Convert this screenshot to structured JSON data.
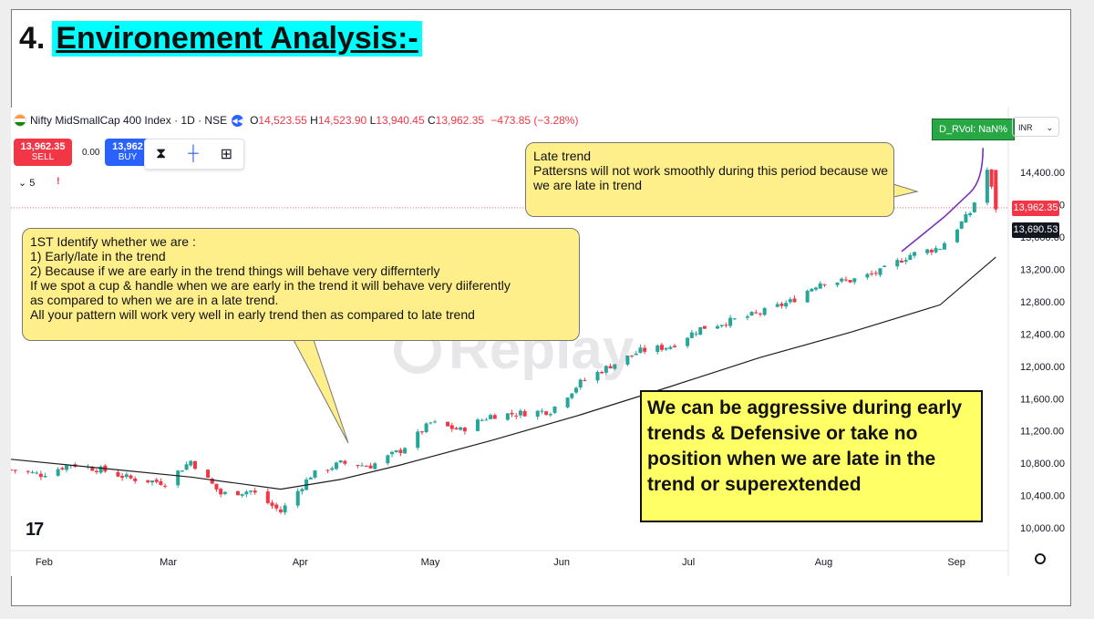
{
  "slide": {
    "heading_number": "4.",
    "heading_text": "Environement Analysis:-"
  },
  "toolbar": {
    "symbol": "Nifty MidSmallCap 400 Index · 1D · NSE",
    "ohlc": {
      "o_label": "O",
      "o": "14,523.55",
      "h_label": "H",
      "h": "14,523.90",
      "l_label": "L",
      "l": "13,940.45",
      "c_label": "C",
      "c": "13,962.35",
      "change": "−473.85 (−3.28%)"
    },
    "sell_price": "13,962.35",
    "sell_label": "SELL",
    "spread": "0.00",
    "buy_price": "13,962",
    "buy_label": "BUY",
    "lines_select": "⌄ 5",
    "warning": "!",
    "indicator": "D_RVol: NaN%",
    "currency": "INR",
    "tv_logo": "17",
    "watermark": "Replay"
  },
  "callouts": {
    "late_trend": [
      "Late trend",
      "Pattersns will not work smoothly during this period because we",
      "we are late in trend"
    ],
    "early": [
      "1ST Identify whether we are :",
      "1) Early/late in the trend",
      "2) Because if we are early in the trend things will behave very differnterly",
      "If we spot a cup & handle when we are early in the trend it will behave very diiferently",
      "as compared to when we are in a late trend.",
      "All your pattern will work very well in early trend then as compared to late trend"
    ],
    "aggressive": [
      "We can be aggressive during early",
      "trends & Defensive or take no",
      "position when we are late in the",
      "trend or superextended"
    ]
  },
  "colors": {
    "up": "#26a69a",
    "down": "#f23645",
    "ma": "#1e1e1e",
    "trendline": "#7b2fbe",
    "accent": "#2962ff"
  },
  "chart_data": {
    "type": "candlestick",
    "y_axis_labels": [
      "14,400.00",
      "14,000.00",
      "13,600.00",
      "13,200.00",
      "12,800.00",
      "12,400.00",
      "12,000.00",
      "11,600.00",
      "11,200.00",
      "10,800.00",
      "10,400.00",
      "10,000.00"
    ],
    "ylim": [
      9900,
      14750
    ],
    "x_axis_labels": [
      "Feb",
      "Mar",
      "Apr",
      "May",
      "Jun",
      "Jul",
      "Aug",
      "Sep"
    ],
    "price_tags": [
      {
        "label": "13,962.35",
        "kind": "last"
      },
      {
        "label": "13,690.53",
        "kind": "ma"
      }
    ],
    "close_series": [
      [
        "2024-01-25",
        10720
      ],
      [
        "2024-02-01",
        10660
      ],
      [
        "2024-02-08",
        10790
      ],
      [
        "2024-02-15",
        10720
      ],
      [
        "2024-02-22",
        10610
      ],
      [
        "2024-03-01",
        10560
      ],
      [
        "2024-03-07",
        10830
      ],
      [
        "2024-03-14",
        10420
      ],
      [
        "2024-03-21",
        10460
      ],
      [
        "2024-03-28",
        10200
      ],
      [
        "2024-04-04",
        10650
      ],
      [
        "2024-04-11",
        10800
      ],
      [
        "2024-04-18",
        10770
      ],
      [
        "2024-04-25",
        10960
      ],
      [
        "2024-05-02",
        11300
      ],
      [
        "2024-05-09",
        11210
      ],
      [
        "2024-05-16",
        11390
      ],
      [
        "2024-05-23",
        11420
      ],
      [
        "2024-05-30",
        11450
      ],
      [
        "2024-06-06",
        11800
      ],
      [
        "2024-06-13",
        12010
      ],
      [
        "2024-06-20",
        12190
      ],
      [
        "2024-06-27",
        12250
      ],
      [
        "2024-07-04",
        12470
      ],
      [
        "2024-07-11",
        12560
      ],
      [
        "2024-07-18",
        12660
      ],
      [
        "2024-07-25",
        12800
      ],
      [
        "2024-08-01",
        13040
      ],
      [
        "2024-08-08",
        13060
      ],
      [
        "2024-08-15",
        13170
      ],
      [
        "2024-08-22",
        13380
      ],
      [
        "2024-08-29",
        13470
      ],
      [
        "2024-09-05",
        13900
      ],
      [
        "2024-09-09",
        14430
      ],
      [
        "2024-09-11",
        13962
      ]
    ],
    "moving_average": [
      [
        "2024-01-25",
        10850
      ],
      [
        "2024-02-15",
        10740
      ],
      [
        "2024-03-07",
        10630
      ],
      [
        "2024-03-28",
        10480
      ],
      [
        "2024-04-11",
        10600
      ],
      [
        "2024-04-25",
        10780
      ],
      [
        "2024-05-16",
        11080
      ],
      [
        "2024-06-06",
        11400
      ],
      [
        "2024-06-27",
        11750
      ],
      [
        "2024-07-18",
        12110
      ],
      [
        "2024-08-08",
        12420
      ],
      [
        "2024-08-29",
        12760
      ],
      [
        "2024-09-11",
        13350
      ]
    ]
  }
}
